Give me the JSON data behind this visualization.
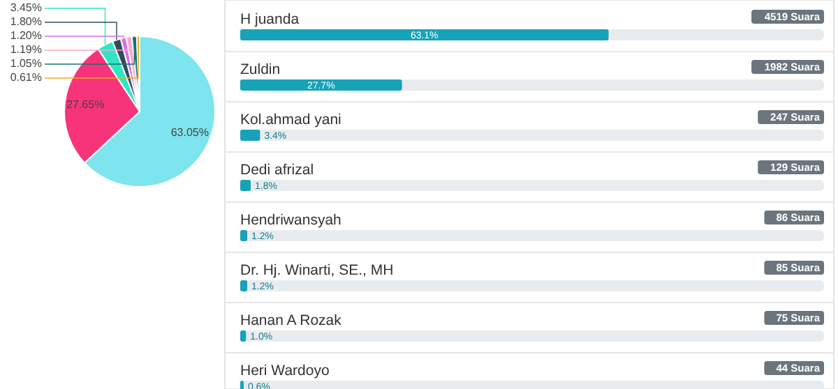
{
  "chart_data": [
    {
      "type": "pie",
      "categories": [
        null,
        null,
        null,
        null,
        null,
        null,
        null,
        null
      ],
      "values": [
        63.05,
        27.65,
        3.45,
        1.8,
        1.2,
        1.19,
        1.05,
        0.61
      ],
      "value_labels": [
        "63.05%",
        "27.65%",
        "3.45%",
        "1.80%",
        "1.20%",
        "1.19%",
        "1.05%",
        "0.61%"
      ],
      "colors": [
        "#7ee4ee",
        "#f7347a",
        "#2ee6c4",
        "#34495e",
        "#d96ff0",
        "#f9a8cf",
        "#15766e",
        "#f2a91e"
      ]
    },
    {
      "type": "bar",
      "orientation": "horizontal",
      "categories": [
        "H juanda",
        "Zuldin",
        "Kol.ahmad yani",
        "Dedi afrizal",
        "Hendriwansyah",
        "Dr. Hj. Winarti, SE., MH",
        "Hanan A Rozak",
        "Heri Wardoyo"
      ],
      "values": [
        63.1,
        27.7,
        3.4,
        1.8,
        1.2,
        1.2,
        1.0,
        0.6
      ],
      "value_labels": [
        "63.1%",
        "27.7%",
        "3.4%",
        "1.8%",
        "1.2%",
        "1.2%",
        "1.0%",
        "0.6%"
      ],
      "color": "#17a2b8",
      "xlim": [
        0,
        100
      ],
      "annotations": [
        "4519 Suara",
        "1982 Suara",
        "247 Suara",
        "129 Suara",
        "86 Suara",
        "85 Suara",
        "75 Suara",
        "44 Suara"
      ]
    }
  ]
}
